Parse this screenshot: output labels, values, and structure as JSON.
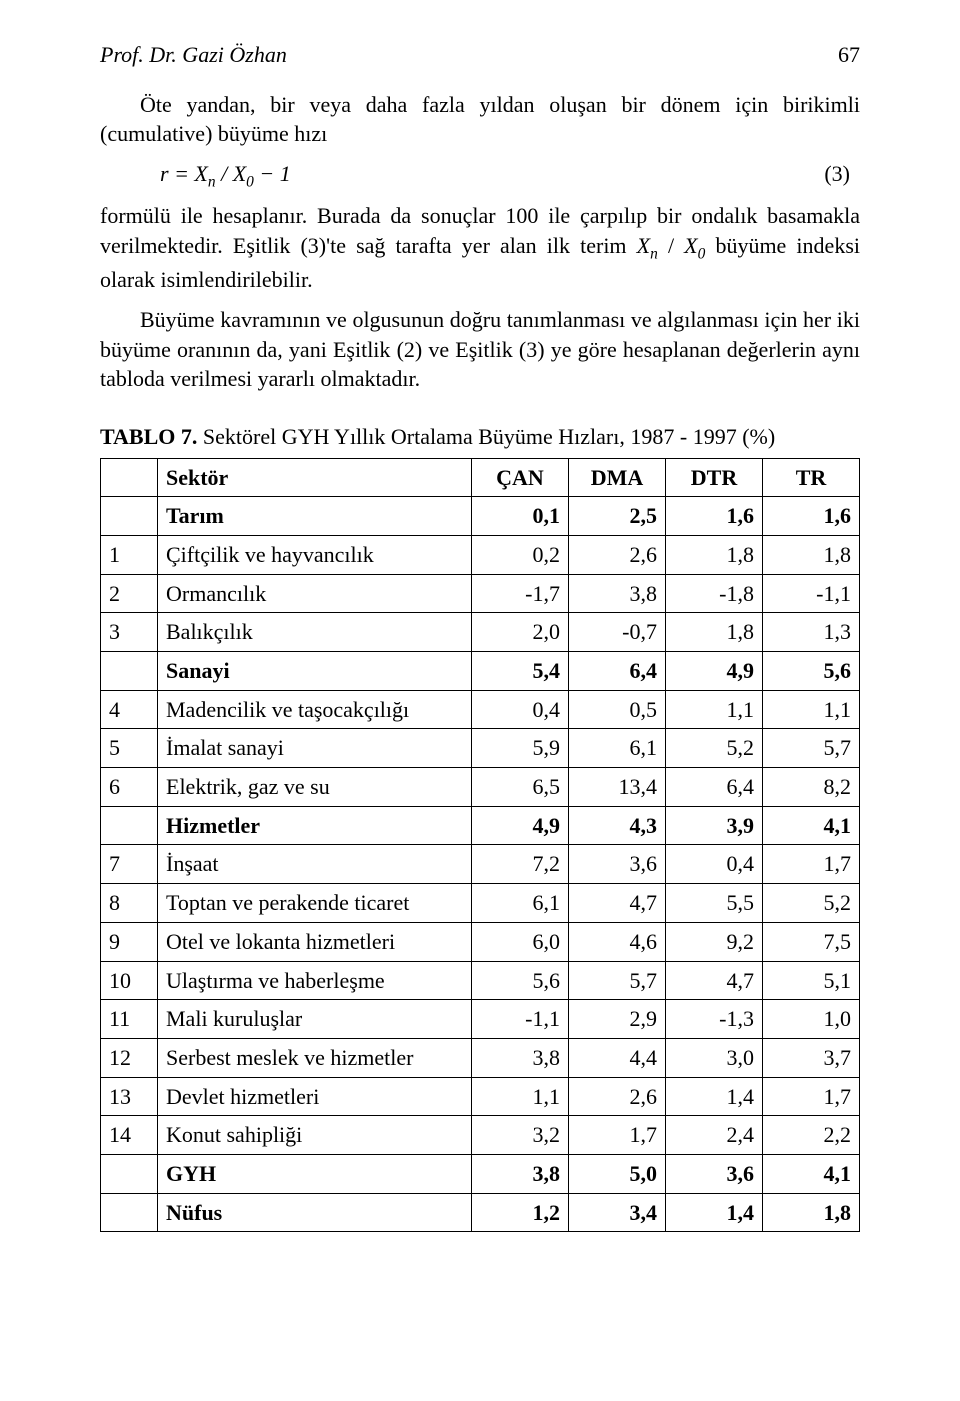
{
  "header": {
    "author": "Prof. Dr. Gazi Özhan",
    "page": "67"
  },
  "paragraphs": {
    "p1": "Öte yandan, bir veya daha fazla yıldan oluşan bir dönem için birikimli (cumulative) büyüme hızı",
    "formula": "r = Xₙ / X₀ − 1",
    "eqno": "(3)",
    "p2a": "formülü ile hesaplanır. Burada da sonuçlar 100 ile çarpılıp bir ondalık basamakla verilmektedir. Eşitlik (3)'te sağ tarafta yer alan ilk terim ",
    "p2b": " büyüme indeksi olarak isimlendirilebilir.",
    "inline_term": "Xₙ / X₀",
    "p3": "Büyüme kavramının ve olgusunun doğru tanımlanması ve algılanması için her iki büyüme oranının da, yani Eşitlik (2) ve Eşitlik (3) ye göre hesaplanan değerlerin aynı tabloda verilmesi yararlı olmaktadır."
  },
  "table": {
    "title_bold": "TABLO 7.",
    "title_rest": " Sektörel GYH Yıllık Ortalama Büyüme Hızları, 1987 - 1997 (%)",
    "columns": [
      "Sektör",
      "ÇAN",
      "DMA",
      "DTR",
      "TR"
    ],
    "rows": [
      {
        "idx": "",
        "name": "Tarım",
        "v": [
          "0,1",
          "2,5",
          "1,6",
          "1,6"
        ],
        "bold": true
      },
      {
        "idx": "1",
        "name": "Çiftçilik ve hayvancılık",
        "v": [
          "0,2",
          "2,6",
          "1,8",
          "1,8"
        ],
        "bold": false
      },
      {
        "idx": "2",
        "name": "Ormancılık",
        "v": [
          "-1,7",
          "3,8",
          "-1,8",
          "-1,1"
        ],
        "bold": false
      },
      {
        "idx": "3",
        "name": "Balıkçılık",
        "v": [
          "2,0",
          "-0,7",
          "1,8",
          "1,3"
        ],
        "bold": false
      },
      {
        "idx": "",
        "name": "Sanayi",
        "v": [
          "5,4",
          "6,4",
          "4,9",
          "5,6"
        ],
        "bold": true
      },
      {
        "idx": "4",
        "name": "Madencilik ve taşocakçılığı",
        "v": [
          "0,4",
          "0,5",
          "1,1",
          "1,1"
        ],
        "bold": false
      },
      {
        "idx": "5",
        "name": "İmalat sanayi",
        "v": [
          "5,9",
          "6,1",
          "5,2",
          "5,7"
        ],
        "bold": false
      },
      {
        "idx": "6",
        "name": "Elektrik, gaz ve su",
        "v": [
          "6,5",
          "13,4",
          "6,4",
          "8,2"
        ],
        "bold": false
      },
      {
        "idx": "",
        "name": "Hizmetler",
        "v": [
          "4,9",
          "4,3",
          "3,9",
          "4,1"
        ],
        "bold": true
      },
      {
        "idx": "7",
        "name": "İnşaat",
        "v": [
          "7,2",
          "3,6",
          "0,4",
          "1,7"
        ],
        "bold": false
      },
      {
        "idx": "8",
        "name": "Toptan ve perakende ticaret",
        "v": [
          "6,1",
          "4,7",
          "5,5",
          "5,2"
        ],
        "bold": false
      },
      {
        "idx": "9",
        "name": "Otel ve lokanta hizmetleri",
        "v": [
          "6,0",
          "4,6",
          "9,2",
          "7,5"
        ],
        "bold": false
      },
      {
        "idx": "10",
        "name": "Ulaştırma ve haberleşme",
        "v": [
          "5,6",
          "5,7",
          "4,7",
          "5,1"
        ],
        "bold": false
      },
      {
        "idx": "11",
        "name": "Mali kuruluşlar",
        "v": [
          "-1,1",
          "2,9",
          "-1,3",
          "1,0"
        ],
        "bold": false
      },
      {
        "idx": "12",
        "name": "Serbest meslek ve hizmetler",
        "v": [
          "3,8",
          "4,4",
          "3,0",
          "3,7"
        ],
        "bold": false
      },
      {
        "idx": "13",
        "name": "Devlet hizmetleri",
        "v": [
          "1,1",
          "2,6",
          "1,4",
          "1,7"
        ],
        "bold": false
      },
      {
        "idx": "14",
        "name": "Konut sahipliği",
        "v": [
          "3,2",
          "1,7",
          "2,4",
          "2,2"
        ],
        "bold": false
      },
      {
        "idx": "",
        "name": "GYH",
        "v": [
          "3,8",
          "5,0",
          "3,6",
          "4,1"
        ],
        "bold": true
      },
      {
        "idx": "",
        "name": "Nüfus",
        "v": [
          "1,2",
          "3,4",
          "1,4",
          "1,8"
        ],
        "bold": true
      }
    ]
  }
}
